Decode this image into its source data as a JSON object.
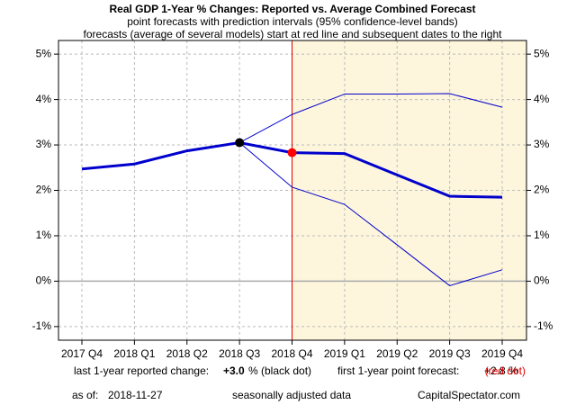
{
  "chart_data": {
    "type": "line",
    "title": "Real GDP 1-Year % Changes: Reported vs. Average Combined Forecast",
    "subtitle": [
      "point forecasts with prediction intervals (95% confidence-level bands)",
      "forecasts (average of several models) start at red line and subsequent dates to the right"
    ],
    "categories": [
      "2017 Q4",
      "2018 Q1",
      "2018 Q2",
      "2018 Q3",
      "2018 Q4",
      "2019 Q1",
      "2019 Q2",
      "2019 Q3",
      "2019 Q4"
    ],
    "series": [
      {
        "name": "point forecast",
        "color": "#0000cc",
        "values": [
          2.47,
          2.58,
          2.87,
          3.05,
          2.83,
          2.81,
          2.34,
          1.87,
          1.85
        ]
      },
      {
        "name": "upper band",
        "color": "#0000cc",
        "values": [
          null,
          null,
          null,
          3.05,
          3.67,
          4.12,
          4.12,
          4.13,
          3.83
        ]
      },
      {
        "name": "lower band",
        "color": "#0000cc",
        "values": [
          null,
          null,
          null,
          3.05,
          2.07,
          1.69,
          0.8,
          -0.1,
          0.25
        ]
      }
    ],
    "ylim": [
      -1.3,
      5.3
    ],
    "yticks": [
      {
        "value": -1,
        "label": "-1%"
      },
      {
        "value": 0,
        "label": "0%"
      },
      {
        "value": 1,
        "label": "1%"
      },
      {
        "value": 2,
        "label": "2%"
      },
      {
        "value": 3,
        "label": "3%"
      },
      {
        "value": 4,
        "label": "4%"
      },
      {
        "value": 5,
        "label": "5%"
      }
    ],
    "grid": true,
    "last_reported": "2018 Q3",
    "forecast_start": "2018 Q4",
    "footer": {
      "reported_label": "last 1-year reported change:",
      "reported_value": "+3.0",
      "reported_note": "% (black dot)",
      "forecast_label": "first 1-year point forecast:",
      "forecast_value": "+2.8 %",
      "forecast_note": "(red dot)",
      "asof_label": "as of:",
      "asof_date": "2018-11-27",
      "note": "seasonally adjusted data",
      "source": "CapitalSpectator.com"
    }
  }
}
